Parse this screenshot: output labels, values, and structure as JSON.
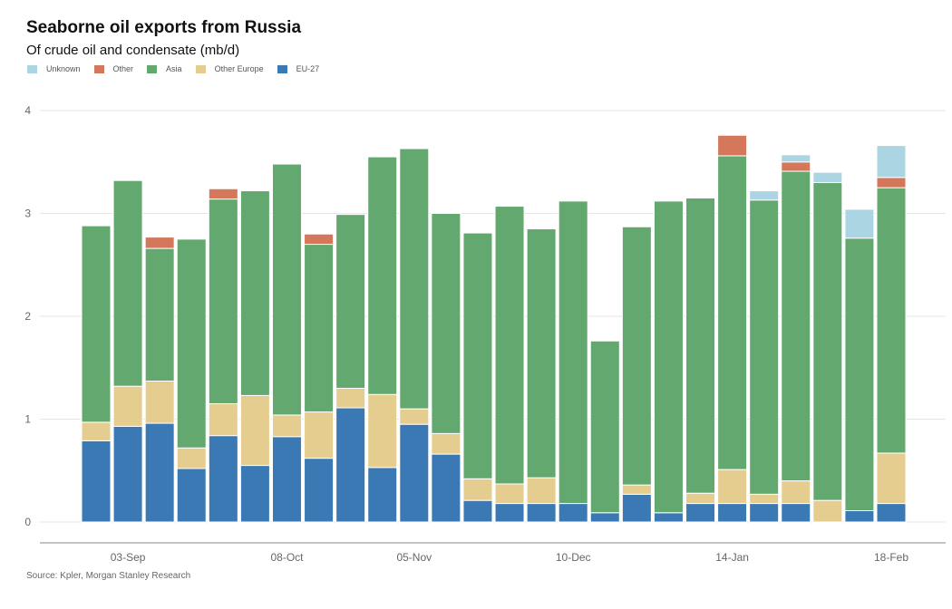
{
  "chart_data": {
    "type": "bar",
    "stacked": true,
    "title": "Seaborne oil exports from Russia",
    "subtitle": "Of crude oil and condensate (mb/d)",
    "source": "Source: Kpler, Morgan Stanley Research",
    "ylim": [
      0,
      4
    ],
    "yticks": [
      "0",
      "1",
      "2",
      "3",
      "4"
    ],
    "xtick_labels": [
      {
        "index": 1,
        "label": "03-Sep"
      },
      {
        "index": 6,
        "label": "08-Oct"
      },
      {
        "index": 10,
        "label": "05-Nov"
      },
      {
        "index": 15,
        "label": "10-Dec"
      },
      {
        "index": 20,
        "label": "14-Jan"
      },
      {
        "index": 25,
        "label": "18-Feb"
      }
    ],
    "n_bars": 26,
    "legend": [
      {
        "name": "Unknown",
        "color": "#acd5e3"
      },
      {
        "name": "Other",
        "color": "#d4775a"
      },
      {
        "name": "Asia",
        "color": "#63a96f"
      },
      {
        "name": "Other Europe",
        "color": "#e5cd8f"
      },
      {
        "name": "EU-27",
        "color": "#3a79b4"
      }
    ],
    "series": [
      {
        "name": "EU-27",
        "color": "#3a79b4",
        "values": [
          0.79,
          0.93,
          0.96,
          0.52,
          0.84,
          0.55,
          0.83,
          0.62,
          1.11,
          0.53,
          0.95,
          0.66,
          0.21,
          0.18,
          0.18,
          0.18,
          0.09,
          0.27,
          0.09,
          0.18,
          0.18,
          0.18,
          0.18,
          0.0,
          0.11,
          0.18
        ]
      },
      {
        "name": "Other Europe",
        "color": "#e5cd8f",
        "values": [
          0.18,
          0.39,
          0.41,
          0.2,
          0.31,
          0.68,
          0.21,
          0.45,
          0.19,
          0.71,
          0.15,
          0.2,
          0.21,
          0.19,
          0.25,
          0.0,
          0.0,
          0.09,
          0.0,
          0.1,
          0.33,
          0.09,
          0.22,
          0.21,
          0.0,
          0.49
        ]
      },
      {
        "name": "Asia",
        "color": "#63a96f",
        "values": [
          1.91,
          2.0,
          1.29,
          2.03,
          1.99,
          1.99,
          2.44,
          1.63,
          1.69,
          2.31,
          2.53,
          2.14,
          2.39,
          2.7,
          2.42,
          2.94,
          1.67,
          2.51,
          3.03,
          2.87,
          3.05,
          2.86,
          3.01,
          3.09,
          2.65,
          2.58
        ]
      },
      {
        "name": "Other",
        "color": "#d4775a",
        "values": [
          0,
          0,
          0.11,
          0,
          0.1,
          0,
          0,
          0.1,
          0,
          0,
          0,
          0,
          0,
          0,
          0,
          0,
          0,
          0,
          0,
          0,
          0.2,
          0,
          0.09,
          0,
          0,
          0.1
        ]
      },
      {
        "name": "Unknown",
        "color": "#acd5e3",
        "values": [
          0,
          0,
          0,
          0,
          0,
          0,
          0,
          0,
          0,
          0,
          0,
          0,
          0,
          0,
          0,
          0,
          0,
          0,
          0,
          0,
          0,
          0.09,
          0.07,
          0.1,
          0.28,
          0.31
        ]
      }
    ]
  }
}
